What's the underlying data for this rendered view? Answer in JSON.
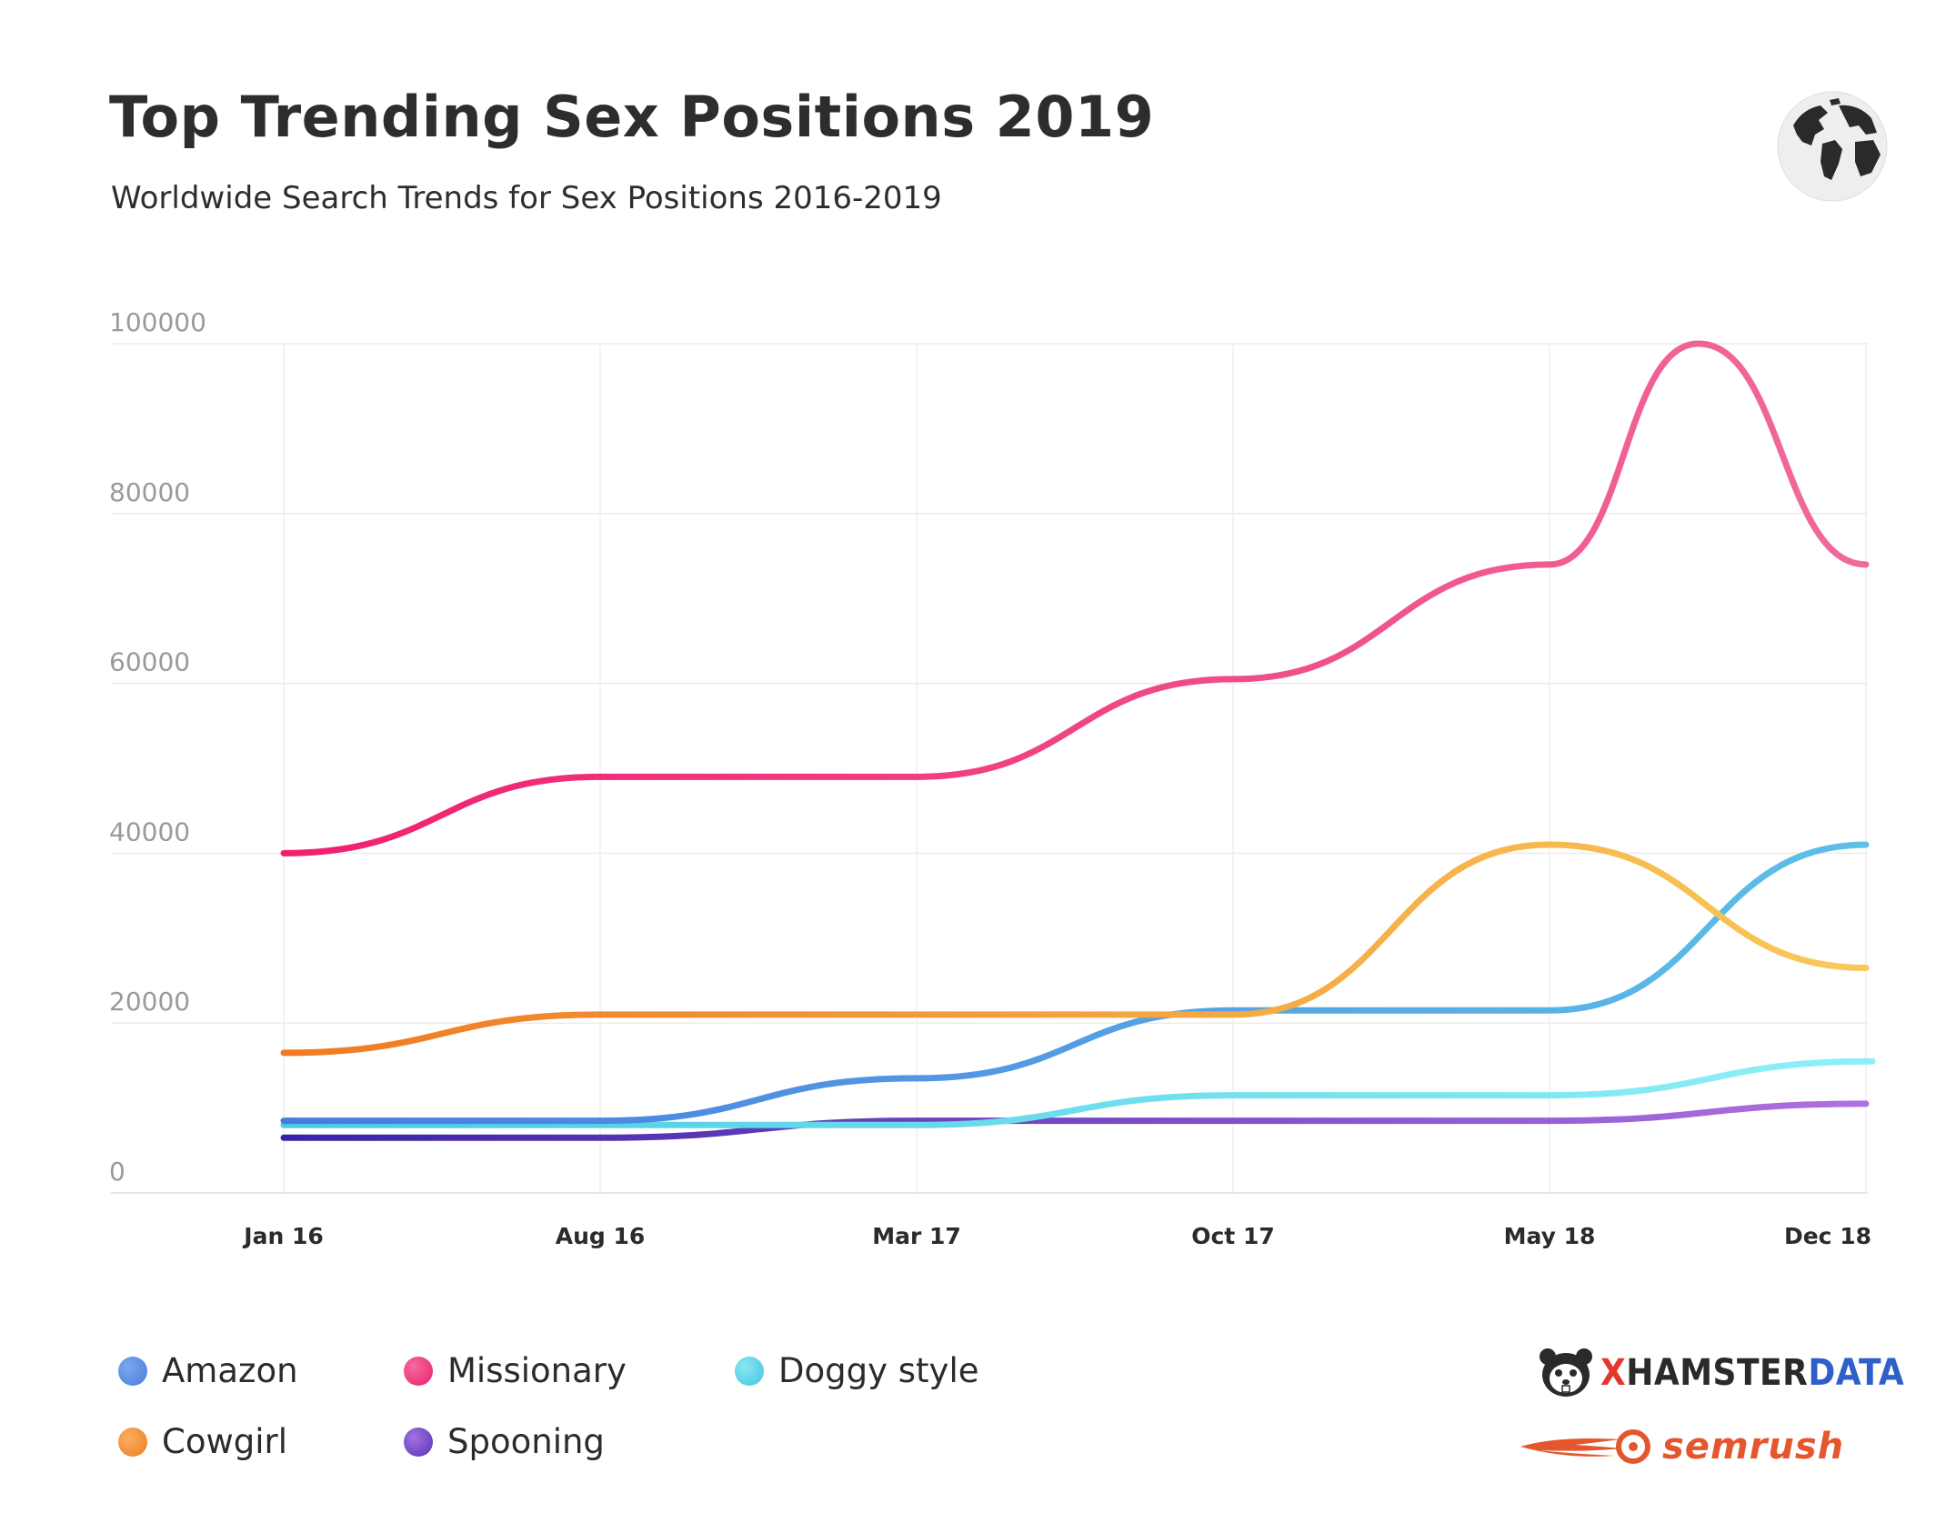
{
  "header": {
    "title": "Top Trending Sex Positions 2019",
    "subtitle": "Worldwide Search Trends for Sex Positions 2016-2019"
  },
  "icons": {
    "globe": "globe-icon",
    "hamster": "hamster-icon",
    "comet": "comet-icon"
  },
  "chart_data": {
    "type": "line",
    "title": "Top Trending Sex Positions 2019",
    "subtitle": "Worldwide Search Trends for Sex Positions 2016-2019",
    "xlabel": "",
    "ylabel": "",
    "ylim": [
      0,
      100000
    ],
    "yticks": [
      0,
      20000,
      40000,
      60000,
      80000,
      100000
    ],
    "x_ticks": [
      "Jan 16",
      "Aug 16",
      "Mar 17",
      "Oct 17",
      "May 18",
      "Dec 18"
    ],
    "x_positions": [
      0,
      1,
      2,
      3,
      4,
      5
    ],
    "grid": true,
    "series": [
      {
        "name": "Missionary",
        "color": "#f0317a",
        "x": [
          0,
          1,
          2,
          3,
          4,
          4.47,
          5
        ],
        "values": [
          40000,
          49000,
          49000,
          60500,
          74000,
          100000,
          74000
        ]
      },
      {
        "name": "Cowgirl",
        "color": "#f48a3a",
        "x": [
          0,
          1,
          2,
          3,
          4,
          5
        ],
        "values": [
          16500,
          21000,
          21000,
          21000,
          41000,
          26500
        ]
      },
      {
        "name": "Amazon",
        "color": "#5b8de8",
        "x": [
          0,
          1,
          2,
          3,
          4,
          5
        ],
        "values": [
          8500,
          8500,
          13500,
          21500,
          21500,
          41000
        ]
      },
      {
        "name": "Doggy style",
        "color": "#5fd6e8",
        "x": [
          0,
          1,
          2,
          3,
          4,
          5.02
        ],
        "values": [
          8000,
          8000,
          8000,
          11500,
          11500,
          15500
        ]
      },
      {
        "name": "Spooning",
        "color": "#7a45c8",
        "x": [
          0,
          1,
          2,
          3,
          4,
          5
        ],
        "values": [
          6500,
          6500,
          8500,
          8500,
          8500,
          10500
        ]
      }
    ]
  },
  "legend": {
    "items": [
      {
        "label": "Amazon",
        "color": "#5b8de8"
      },
      {
        "label": "Missionary",
        "color": "#f0317a"
      },
      {
        "label": "Doggy style",
        "color": "#5fd6e8"
      },
      {
        "label": "Cowgirl",
        "color": "#f48a3a"
      },
      {
        "label": "Spooning",
        "color": "#7a45c8"
      }
    ]
  },
  "branding": {
    "xhamster_x": "X",
    "xhamster_mid": "HAMSTER",
    "xhamster_data": "DATA",
    "semrush": "semrush"
  }
}
